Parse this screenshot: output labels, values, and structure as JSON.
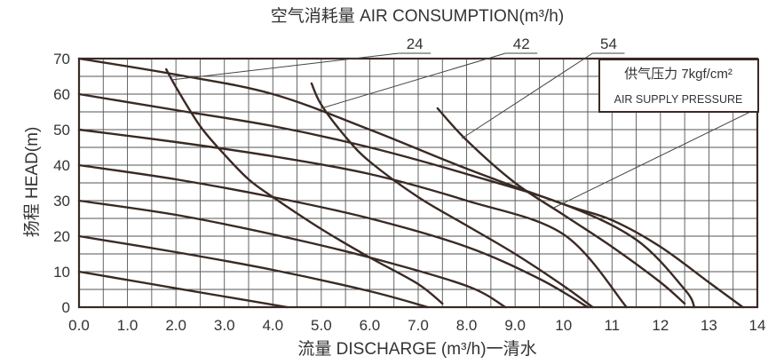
{
  "chart_data": {
    "type": "line",
    "title": "空气消耗量 AIR CONSUMPTION(m³/h)",
    "xlabel": "流量 DISCHARGE (m³/h)一清水",
    "ylabel": "扬程 HEAD(m)",
    "xlim": [
      0,
      14
    ],
    "ylim": [
      0,
      70
    ],
    "x_ticks": [
      "0.0",
      "1.0",
      "2.0",
      "3.0",
      "4.0",
      "5.0",
      "6.0",
      "7.0",
      "8.0",
      "9.0",
      "10",
      "11",
      "12",
      "13",
      "14"
    ],
    "y_ticks": [
      "0",
      "10",
      "20",
      "30",
      "40",
      "50",
      "60",
      "70"
    ],
    "grid": true,
    "legend_box": {
      "line1": "供气压力 7kgf/cm²",
      "line2": "AIR SUPPLY PRESSURE"
    },
    "pressure_curves": [
      {
        "points": [
          [
            0,
            10
          ],
          [
            1.5,
            6.5
          ],
          [
            3.0,
            3.0
          ],
          [
            4.3,
            0
          ]
        ]
      },
      {
        "points": [
          [
            0,
            20
          ],
          [
            2.0,
            15.5
          ],
          [
            4.0,
            10.5
          ],
          [
            6.0,
            4.5
          ],
          [
            7.2,
            0
          ]
        ]
      },
      {
        "points": [
          [
            0,
            30
          ],
          [
            2.0,
            26
          ],
          [
            4.0,
            20.5
          ],
          [
            6.0,
            14
          ],
          [
            8.0,
            6
          ],
          [
            8.8,
            0
          ]
        ]
      },
      {
        "points": [
          [
            0,
            40
          ],
          [
            2.0,
            36
          ],
          [
            4.0,
            31
          ],
          [
            6.0,
            25
          ],
          [
            8.0,
            17
          ],
          [
            9.5,
            8
          ],
          [
            10.5,
            0
          ]
        ]
      },
      {
        "points": [
          [
            0,
            50
          ],
          [
            2.0,
            46.5
          ],
          [
            4.0,
            42.5
          ],
          [
            6.0,
            37.5
          ],
          [
            8.0,
            30
          ],
          [
            10.0,
            20.5
          ],
          [
            11.3,
            0
          ]
        ]
      },
      {
        "points": [
          [
            0,
            60
          ],
          [
            2.0,
            55.5
          ],
          [
            4.0,
            51
          ],
          [
            6.0,
            45
          ],
          [
            8.0,
            37.5
          ],
          [
            10.0,
            29
          ],
          [
            11.5,
            19
          ],
          [
            12.5,
            5
          ],
          [
            12.7,
            0
          ]
        ]
      },
      {
        "points": [
          [
            0,
            70
          ],
          [
            2.0,
            65.5
          ],
          [
            4.0,
            60
          ],
          [
            6.0,
            50
          ],
          [
            8.0,
            39
          ],
          [
            10.0,
            29
          ],
          [
            11.0,
            24.5
          ],
          [
            12.0,
            17
          ],
          [
            13.0,
            7
          ],
          [
            13.7,
            0
          ]
        ]
      }
    ],
    "air_curves": [
      {
        "label": "24",
        "points": [
          [
            1.8,
            67
          ],
          [
            2.0,
            62
          ],
          [
            2.5,
            51
          ],
          [
            3.0,
            43
          ],
          [
            3.5,
            36
          ],
          [
            4.0,
            31
          ],
          [
            5.0,
            22
          ],
          [
            6.0,
            14
          ],
          [
            7.0,
            6.5
          ],
          [
            7.5,
            1
          ]
        ]
      },
      {
        "label": "42",
        "points": [
          [
            4.8,
            63
          ],
          [
            5.0,
            57
          ],
          [
            5.5,
            48
          ],
          [
            6.0,
            41
          ],
          [
            7.0,
            31
          ],
          [
            8.0,
            23
          ],
          [
            9.0,
            15
          ],
          [
            10.0,
            6
          ],
          [
            10.6,
            0
          ]
        ]
      },
      {
        "label": "54",
        "points": [
          [
            7.4,
            56
          ],
          [
            8.0,
            47
          ],
          [
            9.0,
            35
          ],
          [
            10.0,
            26
          ],
          [
            11.0,
            17
          ],
          [
            12.0,
            7
          ],
          [
            12.5,
            1
          ]
        ]
      }
    ],
    "air_label_leaders": [
      {
        "label": "24",
        "from": [
          1.9,
          64
        ],
        "to": [
          6.6,
          71.5
        ]
      },
      {
        "label": "42",
        "from": [
          5.0,
          56
        ],
        "to": [
          8.8,
          71.5
        ]
      },
      {
        "label": "54",
        "from": [
          7.9,
          47.5
        ],
        "to": [
          10.6,
          71.5
        ]
      }
    ],
    "pressure_leader": {
      "from": [
        9.8,
        28
      ],
      "to": [
        14,
        55
      ]
    }
  }
}
